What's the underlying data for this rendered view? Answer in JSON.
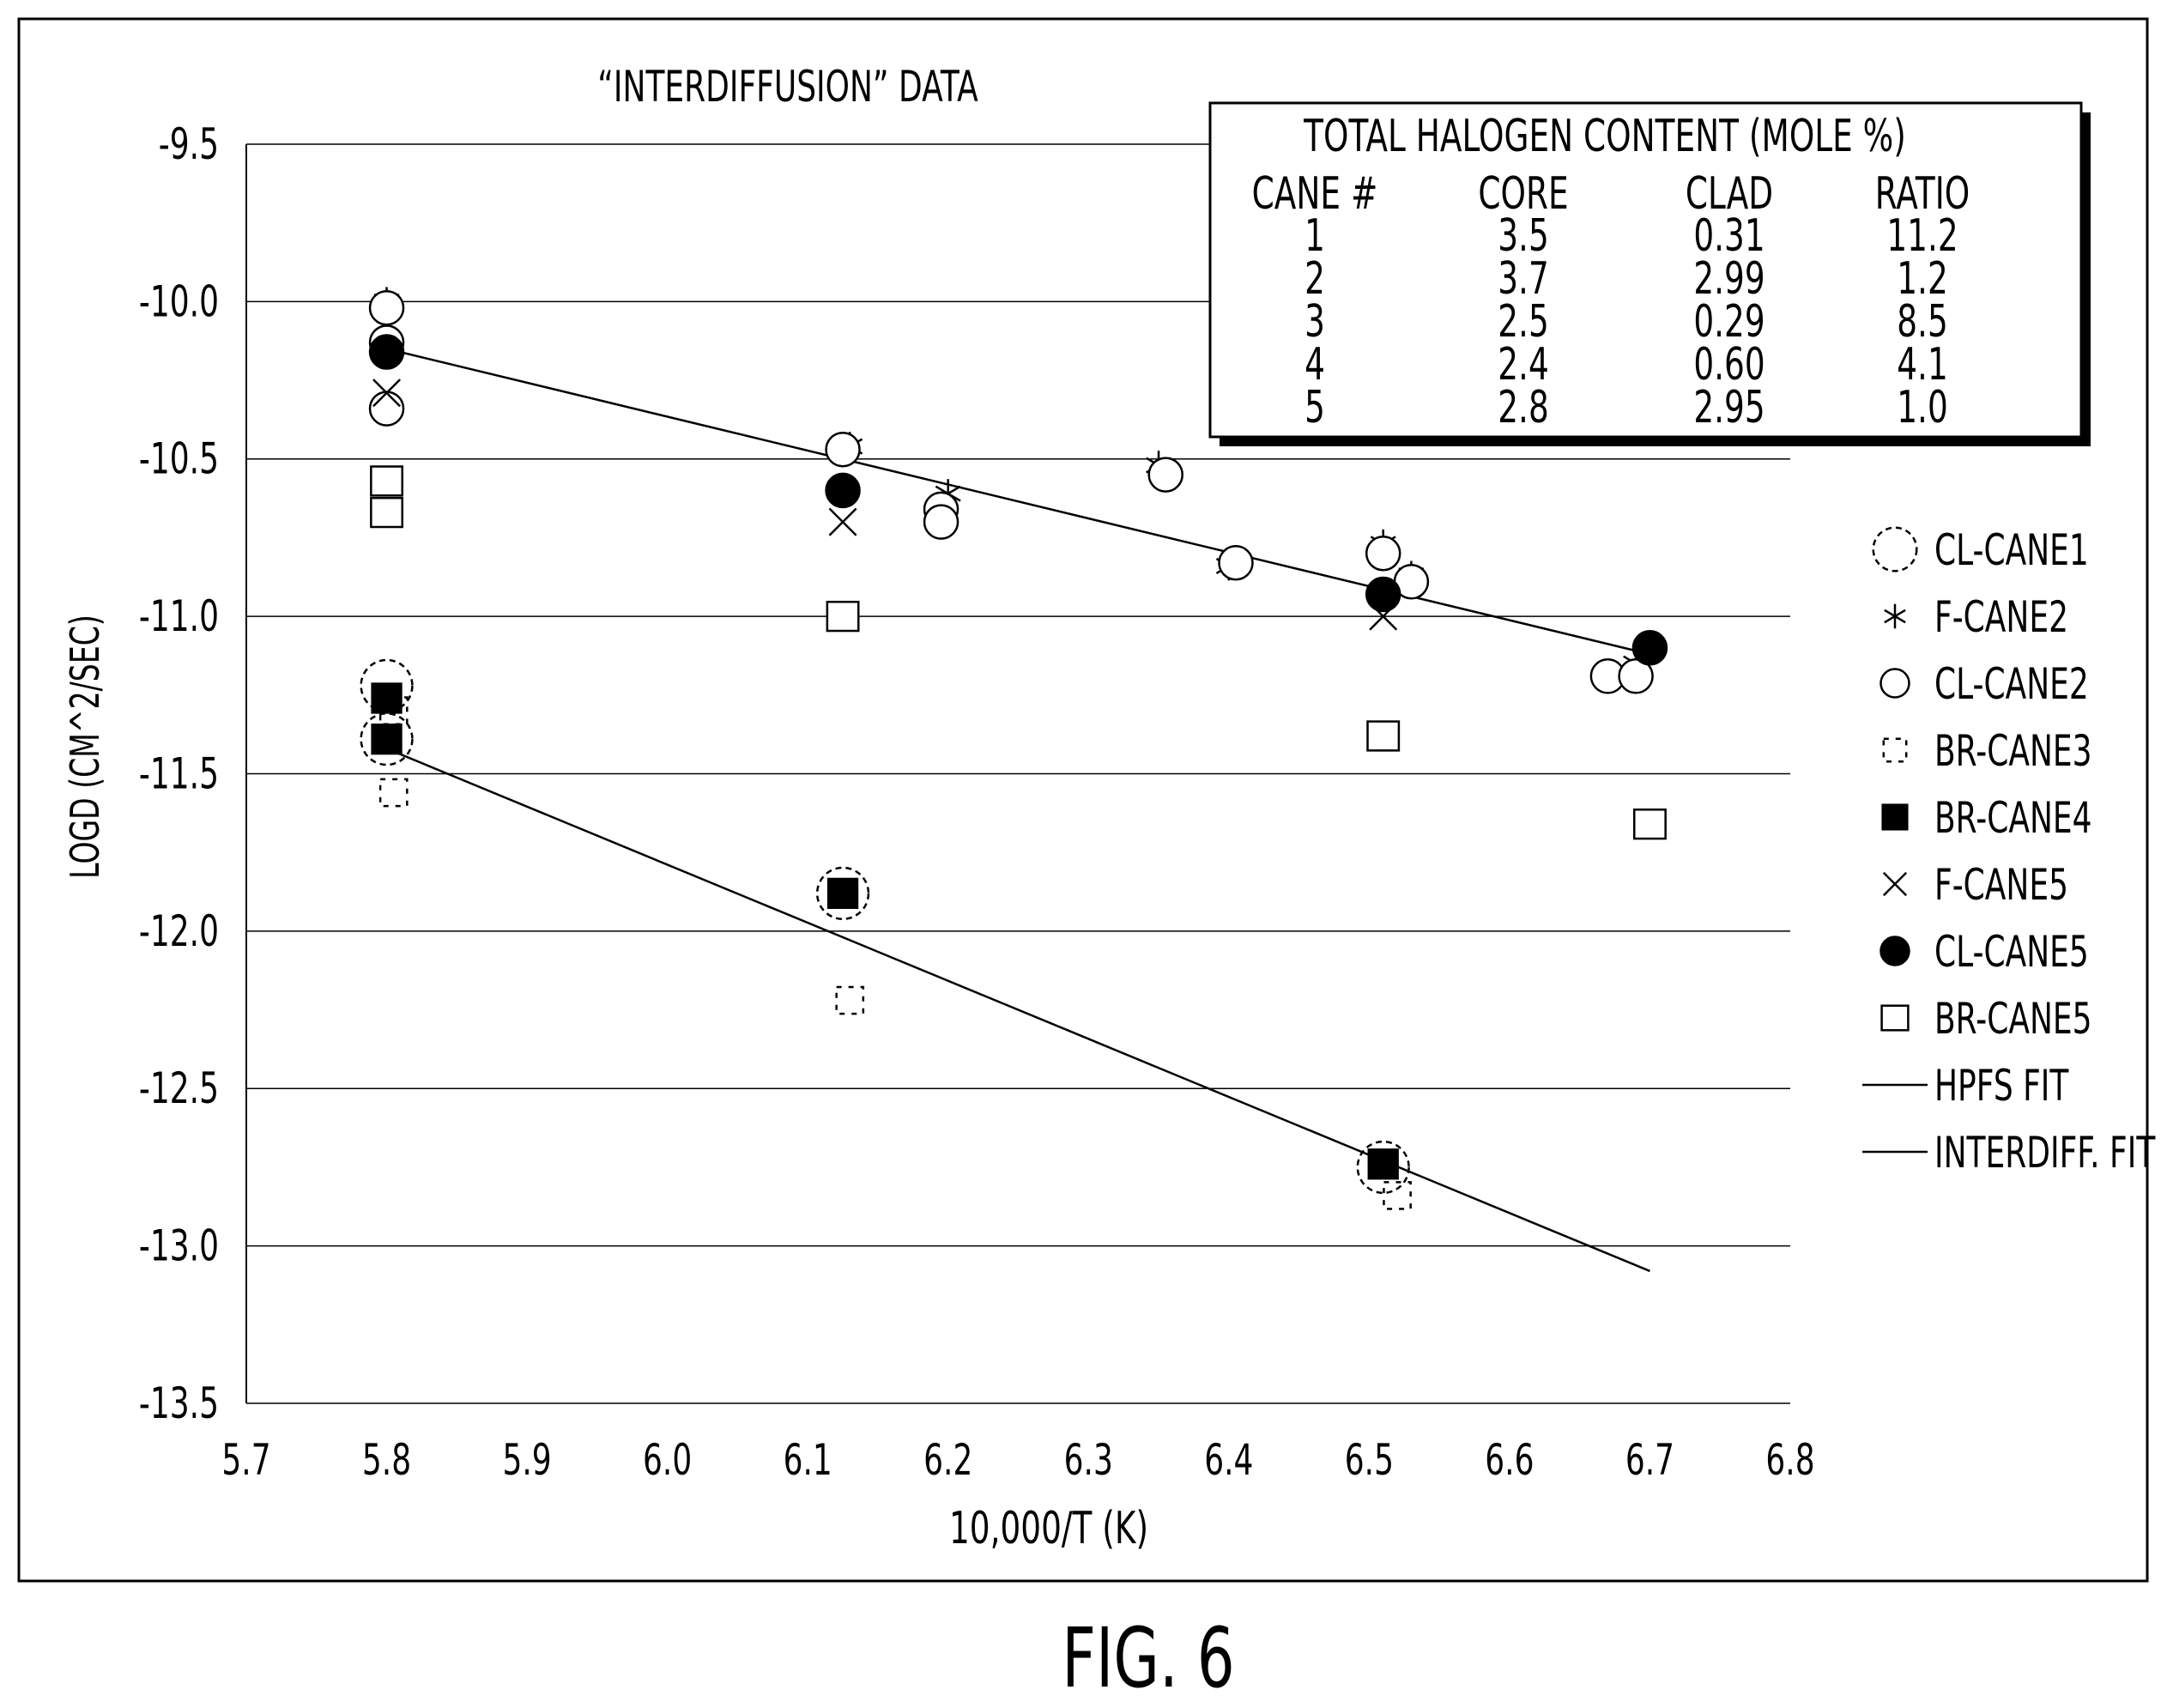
{
  "figure_label": "FIG. 6",
  "chart_data": {
    "type": "scatter",
    "title": "“INTERDIFFUSION” DATA",
    "xlabel": "10,000/T (K)",
    "ylabel": "LOGD (CM^2/SEC)",
    "xlim": [
      5.7,
      6.8
    ],
    "ylim": [
      -13.5,
      -9.5
    ],
    "x_ticks": [
      5.7,
      5.8,
      5.9,
      6.0,
      6.1,
      6.2,
      6.3,
      6.4,
      6.5,
      6.6,
      6.7,
      6.8
    ],
    "x_tick_labels": [
      "5.7",
      "5.8",
      "5.9",
      "6.0",
      "6.1",
      "6.2",
      "6.3",
      "6.4",
      "6.5",
      "6.6",
      "6.7",
      "6.8"
    ],
    "y_ticks": [
      -9.5,
      -10.0,
      -10.5,
      -11.0,
      -11.5,
      -12.0,
      -12.5,
      -13.0,
      -13.5
    ],
    "y_tick_labels": [
      "-9.5",
      "-10.0",
      "-10.5",
      "-11.0",
      "-11.5",
      "-12.0",
      "-12.5",
      "-13.0",
      "-13.5"
    ],
    "grid": "horizontal",
    "legend_position": "right",
    "series": [
      {
        "name": "CL-CANE1",
        "marker": "dashed-circle",
        "points": [
          [
            5.8,
            -11.22
          ],
          [
            5.8,
            -11.39
          ],
          [
            6.125,
            -11.88
          ],
          [
            6.51,
            -12.75
          ]
        ]
      },
      {
        "name": "F-CANE2",
        "marker": "asterisk",
        "points": [
          [
            5.8,
            -10.0
          ],
          [
            6.13,
            -10.46
          ],
          [
            6.2,
            -10.61
          ],
          [
            6.35,
            -10.52
          ],
          [
            6.4,
            -10.84
          ],
          [
            6.51,
            -10.77
          ],
          [
            6.53,
            -10.87
          ],
          [
            6.67,
            -11.2
          ],
          [
            6.69,
            -11.15
          ]
        ]
      },
      {
        "name": "CL-CANE2",
        "marker": "open-circle",
        "points": [
          [
            5.8,
            -10.02
          ],
          [
            5.8,
            -10.13
          ],
          [
            5.8,
            -10.34
          ],
          [
            6.125,
            -10.47
          ],
          [
            6.195,
            -10.66
          ],
          [
            6.195,
            -10.7
          ],
          [
            6.355,
            -10.55
          ],
          [
            6.405,
            -10.83
          ],
          [
            6.51,
            -10.8
          ],
          [
            6.53,
            -10.89
          ],
          [
            6.67,
            -11.19
          ],
          [
            6.69,
            -11.19
          ]
        ]
      },
      {
        "name": "BR-CANE3",
        "marker": "dashed-square",
        "points": [
          [
            5.805,
            -11.3
          ],
          [
            5.805,
            -11.56
          ],
          [
            6.13,
            -12.22
          ],
          [
            6.52,
            -12.84
          ]
        ]
      },
      {
        "name": "BR-CANE4",
        "marker": "filled-square",
        "points": [
          [
            5.8,
            -11.26
          ],
          [
            5.8,
            -11.39
          ],
          [
            6.125,
            -11.88
          ],
          [
            6.51,
            -12.74
          ]
        ]
      },
      {
        "name": "F-CANE5",
        "marker": "x",
        "points": [
          [
            5.8,
            -10.29
          ],
          [
            6.125,
            -10.7
          ],
          [
            6.51,
            -11.0
          ]
        ]
      },
      {
        "name": "CL-CANE5",
        "marker": "filled-circle",
        "points": [
          [
            5.8,
            -10.16
          ],
          [
            6.125,
            -10.6
          ],
          [
            6.51,
            -10.93
          ],
          [
            6.7,
            -11.1
          ]
        ]
      },
      {
        "name": "BR-CANE5",
        "marker": "open-square",
        "points": [
          [
            5.8,
            -10.57
          ],
          [
            5.8,
            -10.67
          ],
          [
            6.125,
            -11.0
          ],
          [
            6.51,
            -11.38
          ],
          [
            6.7,
            -11.66
          ]
        ]
      },
      {
        "name": "HPFS FIT",
        "marker": "line",
        "points": [
          [
            5.8,
            -10.15
          ],
          [
            6.7,
            -11.12
          ]
        ]
      },
      {
        "name": "INTERDIFF. FIT",
        "marker": "line",
        "points": [
          [
            5.8,
            -11.42
          ],
          [
            6.7,
            -13.08
          ]
        ]
      }
    ],
    "inset_table": {
      "title": "TOTAL HALOGEN CONTENT (MOLE %)",
      "headers": [
        "CANE #",
        "CORE",
        "CLAD",
        "RATIO"
      ],
      "rows": [
        [
          "1",
          "3.5",
          "0.31",
          "11.2"
        ],
        [
          "2",
          "3.7",
          "2.99",
          "1.2"
        ],
        [
          "3",
          "2.5",
          "0.29",
          "8.5"
        ],
        [
          "4",
          "2.4",
          "0.60",
          "4.1"
        ],
        [
          "5",
          "2.8",
          "2.95",
          "1.0"
        ]
      ]
    }
  }
}
